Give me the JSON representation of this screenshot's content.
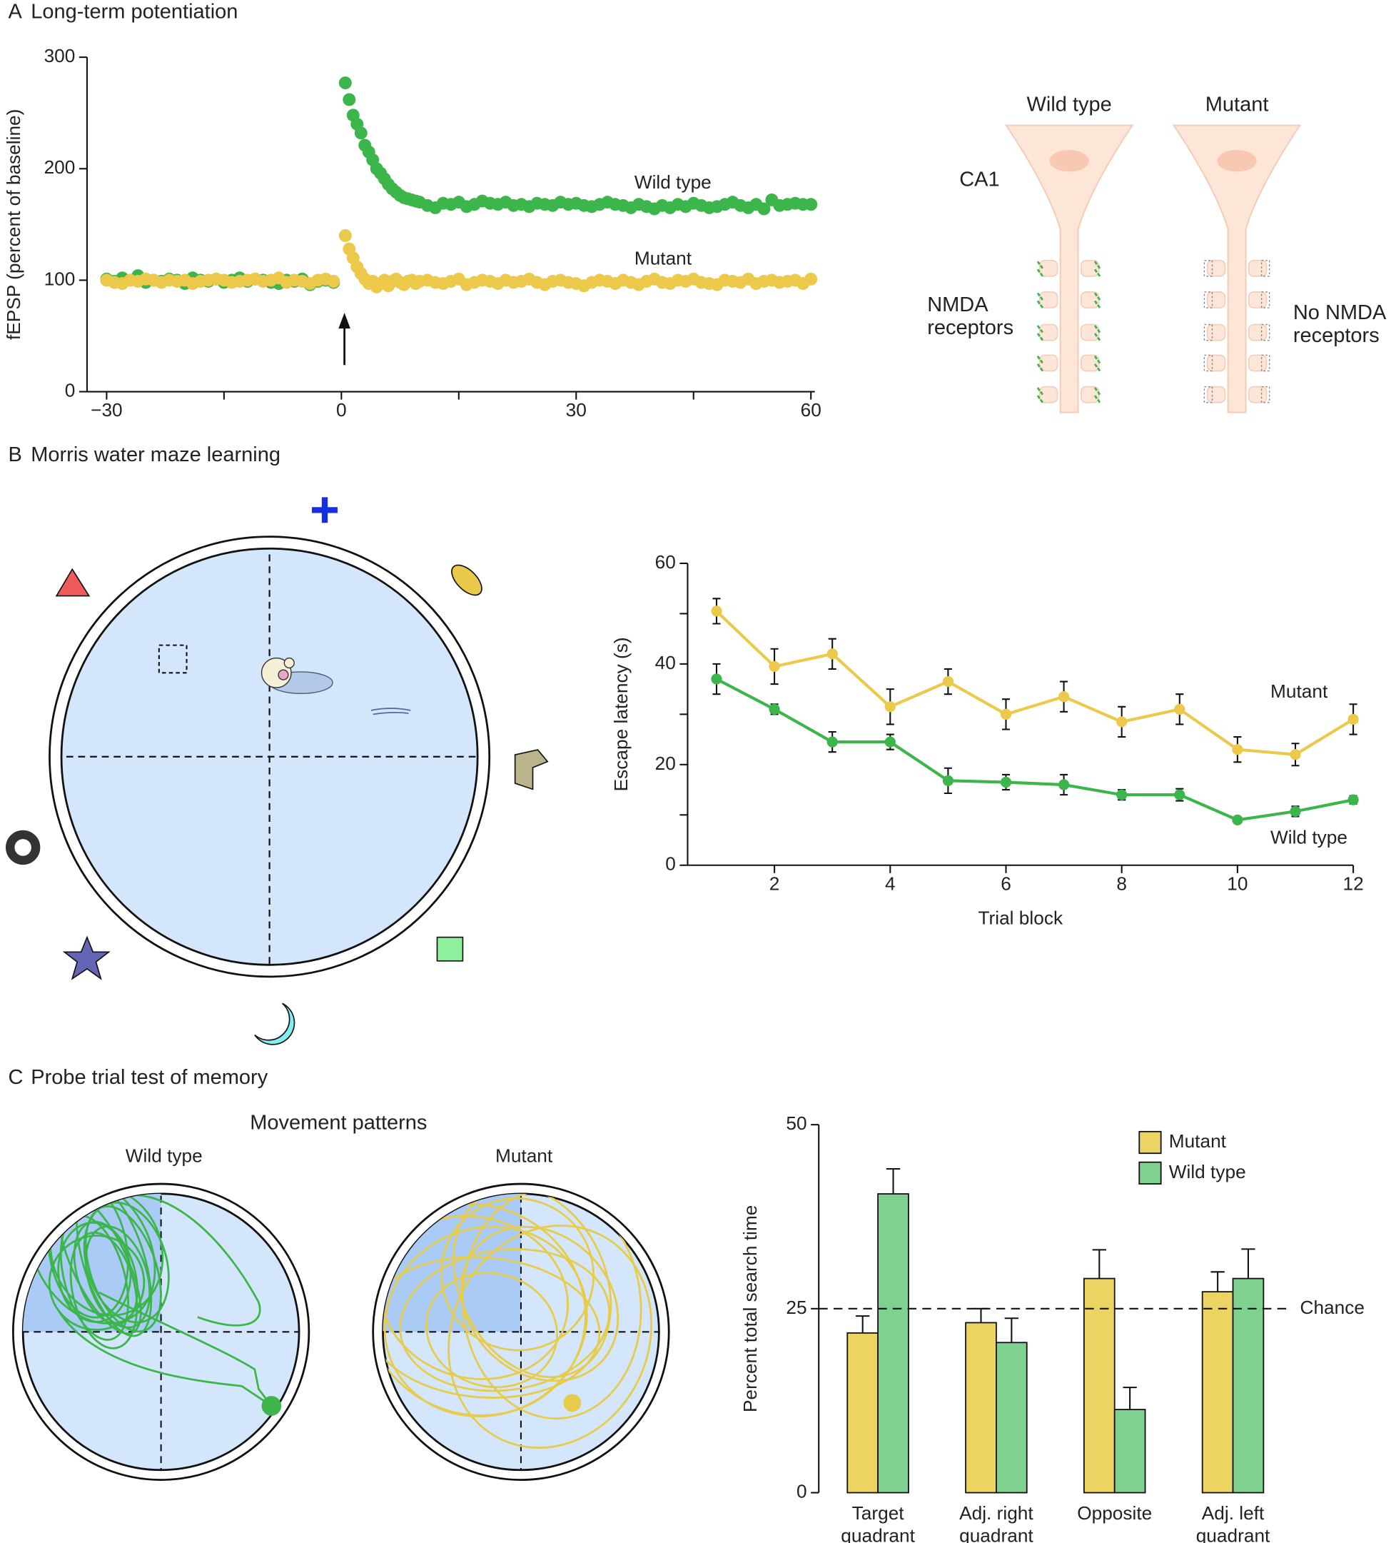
{
  "panels": [
    {
      "letter": "A",
      "title": "Long-term potentiation"
    },
    {
      "letter": "B",
      "title": "Morris water maze learning"
    },
    {
      "letter": "C",
      "title": "Probe trial test of memory"
    }
  ],
  "neuron_diagram": {
    "columns": [
      "Wild type",
      "Mutant"
    ],
    "region": "CA1",
    "left_label": [
      "NMDA",
      "receptors"
    ],
    "right_label": [
      "No NMDA",
      "receptors"
    ]
  },
  "probe": {
    "heading": "Movement patterns",
    "labels": [
      "Wild type",
      "Mutant"
    ]
  },
  "chart_data": [
    {
      "type": "scatter",
      "ylabel": "fEPSP (percent of baseline)",
      "xlim": [
        -32.5,
        60.5
      ],
      "ylim": [
        0,
        300
      ],
      "xticks": [
        {
          "value": -30,
          "label": "−30"
        },
        0,
        30,
        60
      ],
      "xminorticks": [
        -15,
        15,
        45
      ],
      "yticks": [
        0,
        100,
        200,
        300
      ],
      "x": [
        -30,
        -29,
        -28,
        -27,
        -26,
        -25,
        -24,
        -23,
        -22,
        -21,
        -20,
        -19,
        -18,
        -17,
        -16,
        -15,
        -14,
        -13,
        -12,
        -11,
        -10,
        -9,
        -8,
        -7,
        -6,
        -5,
        -4,
        -3,
        -2,
        -1,
        0.5,
        1,
        1.5,
        2,
        2.5,
        3,
        3.5,
        4,
        4.5,
        5,
        5.5,
        6,
        6.5,
        7,
        7.5,
        8,
        8.5,
        9,
        9.5,
        10,
        11,
        12,
        13,
        14,
        15,
        16,
        17,
        18,
        19,
        20,
        21,
        22,
        23,
        24,
        25,
        26,
        27,
        28,
        29,
        30,
        31,
        32,
        33,
        34,
        35,
        36,
        37,
        38,
        39,
        40,
        41,
        42,
        43,
        44,
        45,
        46,
        47,
        48,
        49,
        50,
        51,
        52,
        53,
        54,
        55,
        56,
        57,
        58,
        59,
        60
      ],
      "series": [
        {
          "name": "Wild type",
          "color": "#3cb54a",
          "values": [
            101,
            99,
            102,
            100,
            104,
            98,
            100,
            99,
            101,
            100,
            97,
            102,
            100,
            99,
            101,
            98,
            100,
            102,
            99,
            101,
            100,
            98,
            97,
            100,
            99,
            101,
            96,
            99,
            100,
            98,
            277,
            262,
            248,
            240,
            232,
            221,
            215,
            208,
            200,
            196,
            191,
            186,
            182,
            179,
            176,
            174,
            173,
            172,
            171,
            170,
            167,
            165,
            169,
            168,
            170,
            166,
            168,
            171,
            169,
            168,
            170,
            167,
            168,
            166,
            169,
            168,
            167,
            170,
            168,
            169,
            167,
            166,
            168,
            170,
            168,
            167,
            165,
            168,
            166,
            164,
            167,
            165,
            168,
            166,
            169,
            167,
            165,
            166,
            168,
            170,
            167,
            165,
            168,
            164,
            172,
            167,
            168,
            169,
            168,
            168
          ]
        },
        {
          "name": "Mutant",
          "color": "#ecc94b",
          "values": [
            100,
            98,
            97,
            100,
            99,
            101,
            100,
            98,
            100,
            99,
            100,
            97,
            99,
            100,
            101,
            100,
            98,
            99,
            100,
            101,
            99,
            100,
            102,
            98,
            100,
            99,
            97,
            100,
            101,
            99,
            140,
            128,
            120,
            112,
            106,
            101,
            97,
            99,
            94,
            97,
            100,
            95,
            99,
            101,
            98,
            96,
            99,
            100,
            97,
            99,
            100,
            98,
            97,
            99,
            101,
            96,
            98,
            100,
            99,
            97,
            100,
            98,
            99,
            101,
            98,
            96,
            99,
            100,
            98,
            97,
            95,
            98,
            100,
            99,
            97,
            100,
            98,
            96,
            99,
            101,
            98,
            97,
            100,
            99,
            101,
            98,
            97,
            96,
            100,
            99,
            98,
            101,
            97,
            99,
            100,
            98,
            99,
            100,
            97,
            101
          ]
        }
      ]
    },
    {
      "type": "line",
      "xlabel": "Trial block",
      "ylabel": "Escape latency (s)",
      "xlim": [
        0.5,
        12
      ],
      "ylim": [
        0,
        60
      ],
      "xticks": [
        2,
        4,
        6,
        8,
        10,
        12
      ],
      "yticks": [
        0,
        20,
        40,
        60
      ],
      "yminorticks": [
        10,
        30,
        50
      ],
      "x": [
        1,
        2,
        3,
        4,
        5,
        6,
        7,
        8,
        9,
        10,
        11,
        12
      ],
      "series": [
        {
          "name": "Mutant",
          "color": "#ecc94b",
          "values": [
            50.5,
            39.5,
            42,
            31.5,
            36.5,
            30,
            33.5,
            28.5,
            31,
            23,
            22,
            29
          ],
          "errors": [
            2.5,
            3.5,
            3,
            3.5,
            2.5,
            3,
            3,
            3,
            3,
            2.5,
            2.2,
            3
          ]
        },
        {
          "name": "Wild type",
          "color": "#3cb54a",
          "values": [
            37,
            31,
            24.5,
            24.5,
            16.8,
            16.5,
            16,
            14,
            14,
            9,
            10.7,
            13
          ],
          "errors": [
            3,
            1,
            2,
            1.5,
            2.5,
            1.5,
            2,
            1,
            1.2,
            0.5,
            1,
            0.8
          ]
        }
      ]
    },
    {
      "type": "bar",
      "ylabel": "Percent total search time",
      "ylim": [
        0,
        50
      ],
      "yticks": [
        0,
        25,
        50
      ],
      "categories": [
        [
          "Target",
          "quadrant"
        ],
        [
          "Adj. right",
          "quadrant"
        ],
        [
          "Opposite"
        ],
        [
          "Adj. left",
          "quadrant"
        ]
      ],
      "chance": {
        "value": 25,
        "label": "Chance"
      },
      "legend": "top-right",
      "series": [
        {
          "name": "Mutant",
          "color": "#ecd462",
          "values": [
            21.7,
            23.1,
            29.1,
            27.3
          ],
          "errors": [
            2.3,
            1.9,
            3.9,
            2.7
          ]
        },
        {
          "name": "Wild type",
          "color": "#7fd18f",
          "values": [
            40.6,
            20.4,
            11.3,
            29.1
          ],
          "errors": [
            3.4,
            3.3,
            3,
            4
          ]
        }
      ]
    }
  ]
}
